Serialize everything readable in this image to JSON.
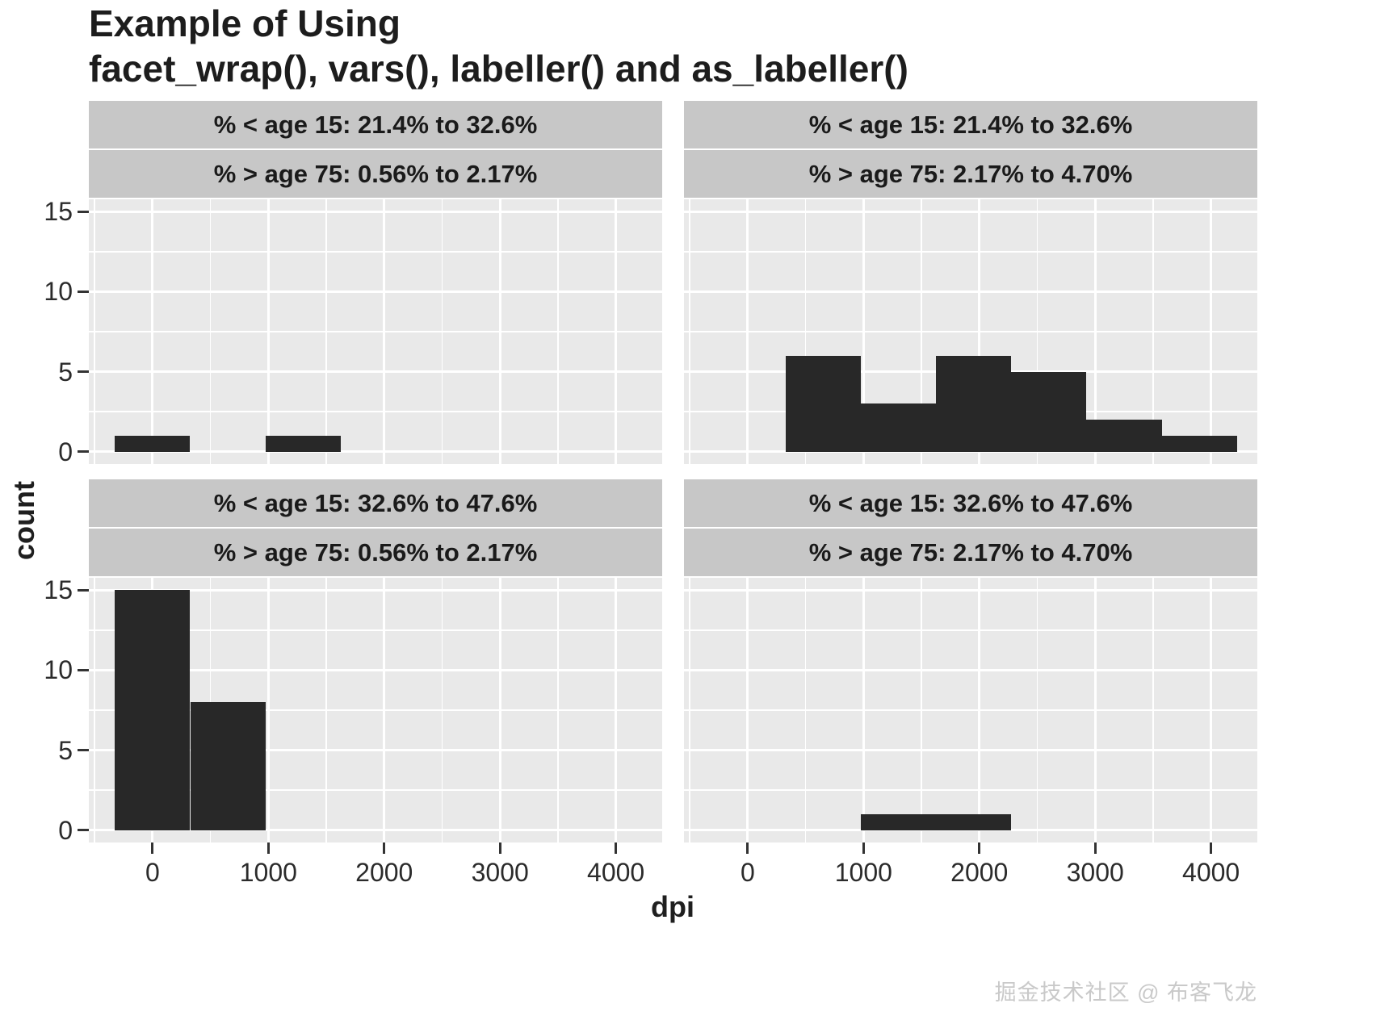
{
  "title": {
    "line1": "Example of Using",
    "line2": "facet_wrap(), vars(), labeller() and as_labeller()"
  },
  "watermark": "掘金技术社区 @ 布客飞龙",
  "chart_data": {
    "type": "bar",
    "subtype": "faceted-histogram",
    "title": "Example of Using facet_wrap(), vars(), labeller() and as_labeller()",
    "xlabel": "dpi",
    "ylabel": "count",
    "x_ticks": [
      0,
      1000,
      2000,
      3000,
      4000
    ],
    "x_minor": [
      -500,
      500,
      1500,
      2500,
      3500
    ],
    "y_ticks": [
      0,
      5,
      10,
      15
    ],
    "y_minor": [
      2.5,
      7.5,
      12.5
    ],
    "xlim": [
      -550,
      4400
    ],
    "ylim": [
      -0.78,
      15.78
    ],
    "binwidth": 650,
    "grid": true,
    "legend": "none",
    "bar_color": "#282828",
    "panel_bg": "#e9e9e9",
    "strip_bg": "#c7c7c7",
    "grid_color": "#ffffff",
    "facets": [
      {
        "row": 0,
        "col": 0,
        "strip1": "% < age 15: 21.4% to 32.6%",
        "strip2": "% > age 75: 0.56% to 2.17%",
        "bins": [
          {
            "x0": -325,
            "x1": 325,
            "count": 1
          },
          {
            "x0": 975,
            "x1": 1625,
            "count": 1
          }
        ]
      },
      {
        "row": 0,
        "col": 1,
        "strip1": "% < age 15: 21.4% to 32.6%",
        "strip2": "% > age 75: 2.17% to 4.70%",
        "bins": [
          {
            "x0": 325,
            "x1": 975,
            "count": 6
          },
          {
            "x0": 975,
            "x1": 1625,
            "count": 3
          },
          {
            "x0": 1625,
            "x1": 2275,
            "count": 6
          },
          {
            "x0": 2275,
            "x1": 2925,
            "count": 5
          },
          {
            "x0": 2925,
            "x1": 3575,
            "count": 2
          },
          {
            "x0": 3575,
            "x1": 4225,
            "count": 1
          }
        ]
      },
      {
        "row": 1,
        "col": 0,
        "strip1": "% < age 15: 32.6% to 47.6%",
        "strip2": "% > age 75: 0.56% to 2.17%",
        "bins": [
          {
            "x0": -325,
            "x1": 325,
            "count": 15
          },
          {
            "x0": 325,
            "x1": 975,
            "count": 8
          }
        ]
      },
      {
        "row": 1,
        "col": 1,
        "strip1": "% < age 15: 32.6% to 47.6%",
        "strip2": "% > age 75: 2.17% to 4.70%",
        "bins": [
          {
            "x0": 975,
            "x1": 1625,
            "count": 1
          },
          {
            "x0": 1625,
            "x1": 2275,
            "count": 1
          }
        ]
      }
    ]
  }
}
